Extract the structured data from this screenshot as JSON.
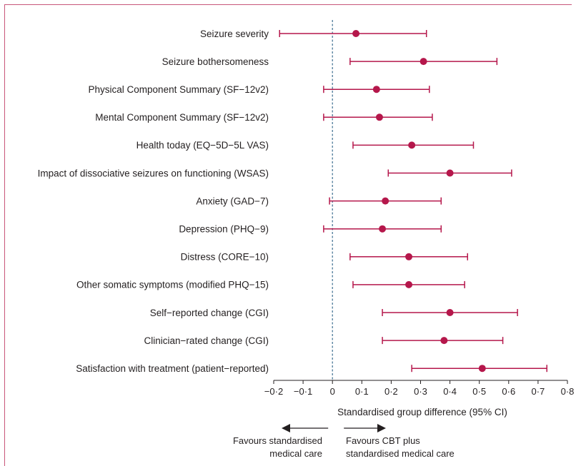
{
  "chart_data": {
    "type": "forest",
    "xlabel": "Standardised group difference (95% CI)",
    "xlim": [
      -0.2,
      0.8
    ],
    "ticks": [
      -0.2,
      -0.1,
      0,
      0.1,
      0.2,
      0.3,
      0.4,
      0.5,
      0.6,
      0.7,
      0.8
    ],
    "tick_labels": [
      "−0·2",
      "−0·1",
      "0",
      "0·1",
      "0·2",
      "0·3",
      "0·4",
      "0·5",
      "0·6",
      "0·7",
      "0·8"
    ],
    "reference_line": 0,
    "rows": [
      {
        "label": "Seizure severity",
        "estimate": 0.08,
        "lower": -0.18,
        "upper": 0.32
      },
      {
        "label": "Seizure bothersomeness",
        "estimate": 0.31,
        "lower": 0.06,
        "upper": 0.56
      },
      {
        "label": "Physical Component Summary (SF−12v2)",
        "estimate": 0.15,
        "lower": -0.03,
        "upper": 0.33
      },
      {
        "label": "Mental Component Summary (SF−12v2)",
        "estimate": 0.16,
        "lower": -0.03,
        "upper": 0.34
      },
      {
        "label": "Health today (EQ−5D−5L VAS)",
        "estimate": 0.27,
        "lower": 0.07,
        "upper": 0.48
      },
      {
        "label": "Impact of dissociative seizures on functioning (WSAS)",
        "estimate": 0.4,
        "lower": 0.19,
        "upper": 0.61
      },
      {
        "label": "Anxiety (GAD−7)",
        "estimate": 0.18,
        "lower": -0.01,
        "upper": 0.37
      },
      {
        "label": "Depression (PHQ−9)",
        "estimate": 0.17,
        "lower": -0.03,
        "upper": 0.37
      },
      {
        "label": "Distress (CORE−10)",
        "estimate": 0.26,
        "lower": 0.06,
        "upper": 0.46
      },
      {
        "label": "Other somatic symptoms (modified PHQ−15)",
        "estimate": 0.26,
        "lower": 0.07,
        "upper": 0.45
      },
      {
        "label": "Self−reported change (CGI)",
        "estimate": 0.4,
        "lower": 0.17,
        "upper": 0.63
      },
      {
        "label": "Clinician−rated change (CGI)",
        "estimate": 0.38,
        "lower": 0.17,
        "upper": 0.58
      },
      {
        "label": "Satisfaction with treatment (patient−reported)",
        "estimate": 0.51,
        "lower": 0.27,
        "upper": 0.73
      }
    ],
    "direction_left": [
      "Favours standardised",
      "medical care"
    ],
    "direction_right": [
      "Favours CBT plus",
      "standardised medical care"
    ],
    "colors": {
      "marker": "#b5174b",
      "axis": "#231f20",
      "reference": "#3c6e8f",
      "frame": "#c8567a"
    }
  }
}
